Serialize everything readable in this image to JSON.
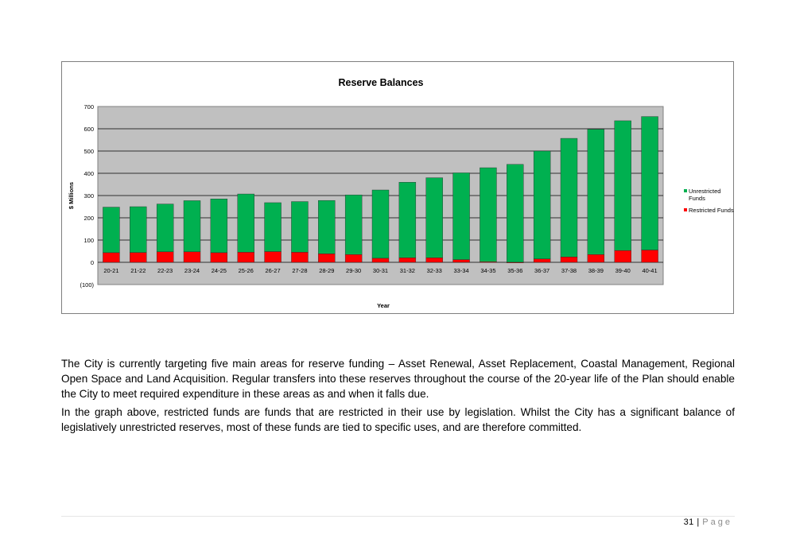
{
  "chart_data": {
    "type": "bar",
    "stacked": true,
    "title": "Reserve Balances",
    "xlabel": "Year",
    "ylabel": "$ Millions",
    "ylim": [
      -100,
      700
    ],
    "yticks": [
      700,
      600,
      500,
      400,
      300,
      200,
      100,
      0,
      -100
    ],
    "ytick_labels": [
      "700",
      "600",
      "500",
      "400",
      "300",
      "200",
      "100",
      "0",
      "(100)"
    ],
    "categories": [
      "20-21",
      "21-22",
      "22-23",
      "23-24",
      "24-25",
      "25-26",
      "26-27",
      "27-28",
      "28-29",
      "29-30",
      "30-31",
      "31-32",
      "32-33",
      "33-34",
      "34-35",
      "35-36",
      "36-37",
      "37-38",
      "38-39",
      "39-40",
      "40-41"
    ],
    "series": [
      {
        "name": "Restricted Funds",
        "color": "#ff0000",
        "values": [
          43,
          44,
          47,
          47,
          43,
          45,
          48,
          45,
          38,
          35,
          18,
          20,
          20,
          12,
          2,
          0,
          15,
          24,
          35,
          53,
          55
        ]
      },
      {
        "name": "Unrestricted Funds",
        "color": "#00b050",
        "values": [
          205,
          206,
          215,
          230,
          242,
          262,
          220,
          228,
          240,
          268,
          307,
          340,
          360,
          390,
          423,
          440,
          485,
          533,
          563,
          583,
          600
        ]
      }
    ],
    "legend_labels": [
      [
        "Unrestricted",
        "Funds"
      ],
      [
        "Restricted Funds"
      ]
    ],
    "legend": "right",
    "grid": true,
    "plot_bg": "#c0c0c0"
  },
  "text": {
    "para1": "The City is currently targeting five main areas for reserve funding – Asset Renewal, Asset Replacement, Coastal Management, Regional Open Space and Land Acquisition. Regular transfers into these reserves throughout the course of the 20-year life of the Plan should enable the City to meet required expenditure in these areas as and when it falls due.",
    "para2": "In the graph above, restricted funds are funds that are restricted in their use by legislation. Whilst the City has a significant balance of legislatively unrestricted reserves, most of these funds are tied to specific uses, and are therefore committed."
  },
  "footer": {
    "page_number": "31",
    "separator": " | ",
    "page_word": "Page"
  }
}
